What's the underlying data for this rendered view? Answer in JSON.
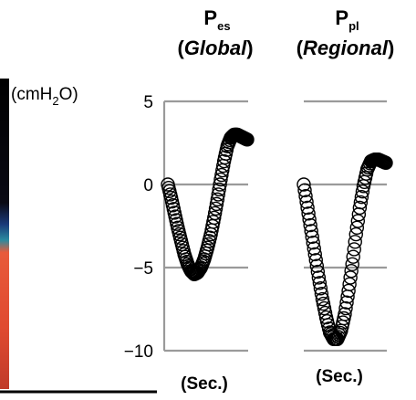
{
  "chart_data": {
    "type": "line",
    "unit_label": "(cmH2O)",
    "yticks": [
      5,
      0,
      -5,
      -10
    ],
    "ytick_labels": [
      "5",
      "0",
      "−5",
      "−10"
    ],
    "ylim": [
      -10,
      5
    ],
    "panels": [
      {
        "title_main": "P",
        "title_sub": "es",
        "subtitle": "Global",
        "xlabel": "(Sec.)",
        "points": [
          [
            0.0,
            0.0
          ],
          [
            0.04,
            -0.8
          ],
          [
            0.08,
            -1.7
          ],
          [
            0.12,
            -2.6
          ],
          [
            0.16,
            -3.4
          ],
          [
            0.2,
            -4.2
          ],
          [
            0.24,
            -4.8
          ],
          [
            0.28,
            -5.2
          ],
          [
            0.32,
            -5.4
          ],
          [
            0.36,
            -5.3
          ],
          [
            0.4,
            -5.0
          ],
          [
            0.44,
            -4.5
          ],
          [
            0.48,
            -3.8
          ],
          [
            0.52,
            -3.0
          ],
          [
            0.56,
            -2.0
          ],
          [
            0.6,
            -0.9
          ],
          [
            0.64,
            0.3
          ],
          [
            0.68,
            1.4
          ],
          [
            0.72,
            2.3
          ],
          [
            0.76,
            2.8
          ],
          [
            0.8,
            3.0
          ],
          [
            0.84,
            3.0
          ],
          [
            0.88,
            2.9
          ],
          [
            0.92,
            2.8
          ],
          [
            0.96,
            2.7
          ]
        ]
      },
      {
        "title_main": "P",
        "title_sub": "pl",
        "subtitle": "Regional",
        "xlabel": "(Sec.)",
        "points": [
          [
            0.0,
            0.0
          ],
          [
            0.04,
            -1.4
          ],
          [
            0.08,
            -2.8
          ],
          [
            0.12,
            -4.2
          ],
          [
            0.16,
            -5.6
          ],
          [
            0.2,
            -6.9
          ],
          [
            0.24,
            -8.0
          ],
          [
            0.28,
            -8.9
          ],
          [
            0.32,
            -9.3
          ],
          [
            0.36,
            -9.3
          ],
          [
            0.4,
            -8.8
          ],
          [
            0.44,
            -7.8
          ],
          [
            0.48,
            -6.4
          ],
          [
            0.52,
            -4.8
          ],
          [
            0.56,
            -3.0
          ],
          [
            0.6,
            -1.4
          ],
          [
            0.64,
            -0.1
          ],
          [
            0.68,
            0.9
          ],
          [
            0.72,
            1.4
          ],
          [
            0.76,
            1.5
          ],
          [
            0.8,
            1.5
          ],
          [
            0.84,
            1.4
          ],
          [
            0.88,
            1.3
          ]
        ]
      }
    ],
    "background_colorbar": [
      "#000000",
      "#1a3a7a",
      "#2a8aa0",
      "#e85a3a",
      "#e04a30",
      "#c03a2a"
    ],
    "grid": true
  }
}
